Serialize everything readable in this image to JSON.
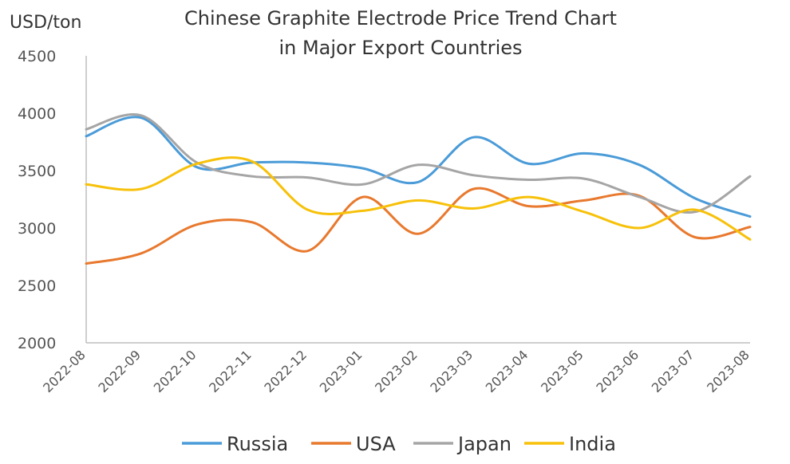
{
  "chart_data": {
    "type": "line",
    "title_lines": [
      "Chinese Graphite Electrode Price Trend Chart",
      "in Major Export Countries"
    ],
    "ylabel": "USD/ton",
    "xlabel": "",
    "ylim": [
      2000,
      4500
    ],
    "yticks": [
      2000,
      2500,
      3000,
      3500,
      4000,
      4500
    ],
    "categories": [
      "2022-08",
      "2022-09",
      "2022-10",
      "2022-11",
      "2022-12",
      "2023-01",
      "2023-02",
      "2023-03",
      "2023-04",
      "2023-05",
      "2023-06",
      "2023-07",
      "2023-08"
    ],
    "grid": false,
    "legend_position": "bottom",
    "series": [
      {
        "name": "Russia",
        "color": "#4a9bd8",
        "values": [
          3800,
          3960,
          3530,
          3570,
          3570,
          3520,
          3400,
          3790,
          3560,
          3650,
          3550,
          3260,
          3100
        ]
      },
      {
        "name": "USA",
        "color": "#e8792e",
        "values": [
          2690,
          2780,
          3030,
          3050,
          2800,
          3270,
          2950,
          3340,
          3190,
          3240,
          3280,
          2920,
          3010
        ]
      },
      {
        "name": "Japan",
        "color": "#a5a5a5",
        "values": [
          3860,
          3980,
          3570,
          3450,
          3440,
          3380,
          3550,
          3460,
          3420,
          3430,
          3270,
          3140,
          3450
        ]
      },
      {
        "name": "India",
        "color": "#f7c10a",
        "values": [
          3380,
          3340,
          3560,
          3580,
          3160,
          3150,
          3240,
          3170,
          3270,
          3140,
          3000,
          3160,
          2900
        ]
      }
    ]
  }
}
